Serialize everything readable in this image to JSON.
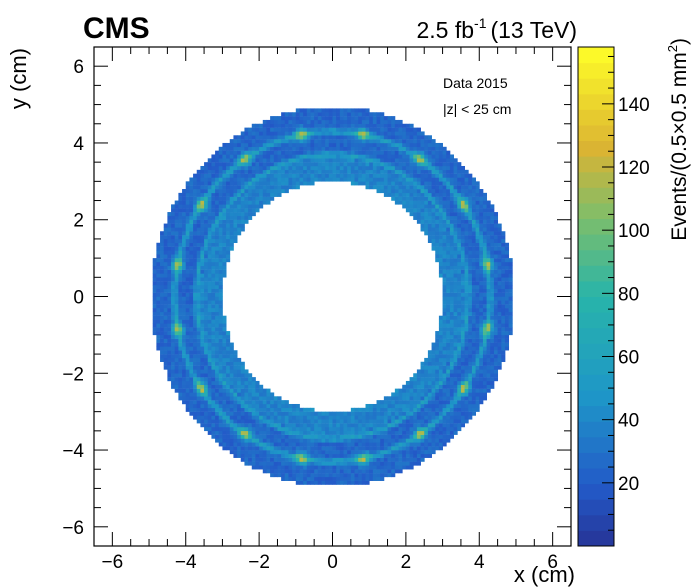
{
  "header": {
    "experiment": "CMS",
    "luminosity_value": "2.5 fb",
    "luminosity_exponent": "-1",
    "energy": "(13 TeV)"
  },
  "legend": {
    "line1": "Data 2015",
    "line2": "|z| < 25 cm"
  },
  "chart_data": {
    "type": "heatmap",
    "xlabel": "x (cm)",
    "ylabel": "y (cm)",
    "xlim": [
      -6.5,
      6.5
    ],
    "ylim": [
      -6.5,
      6.5
    ],
    "x_ticks": [
      -6,
      -4,
      -2,
      0,
      2,
      4,
      6
    ],
    "y_ticks": [
      -6,
      -4,
      -2,
      0,
      2,
      4,
      6
    ],
    "colorbar": {
      "label_prefix": "Events/(0.5×0.5 mm",
      "label_exponent": "2",
      "label_suffix": ")",
      "range": [
        0,
        158
      ],
      "ticks": [
        20,
        40,
        60,
        80,
        100,
        120,
        140
      ]
    },
    "distribution": {
      "inner_radius": 3.0,
      "outer_radius": 4.95,
      "ring_structure_radii": [
        2.9,
        3.7,
        4.3
      ],
      "module_count": 16,
      "background_level": 25,
      "inner_zone_level": 38,
      "ring_line_level": 55,
      "module_peak_level": 100
    },
    "colors": {
      "low": "#2a3a9a",
      "mid": "#2eb3b5",
      "high": "#ffff33"
    }
  }
}
